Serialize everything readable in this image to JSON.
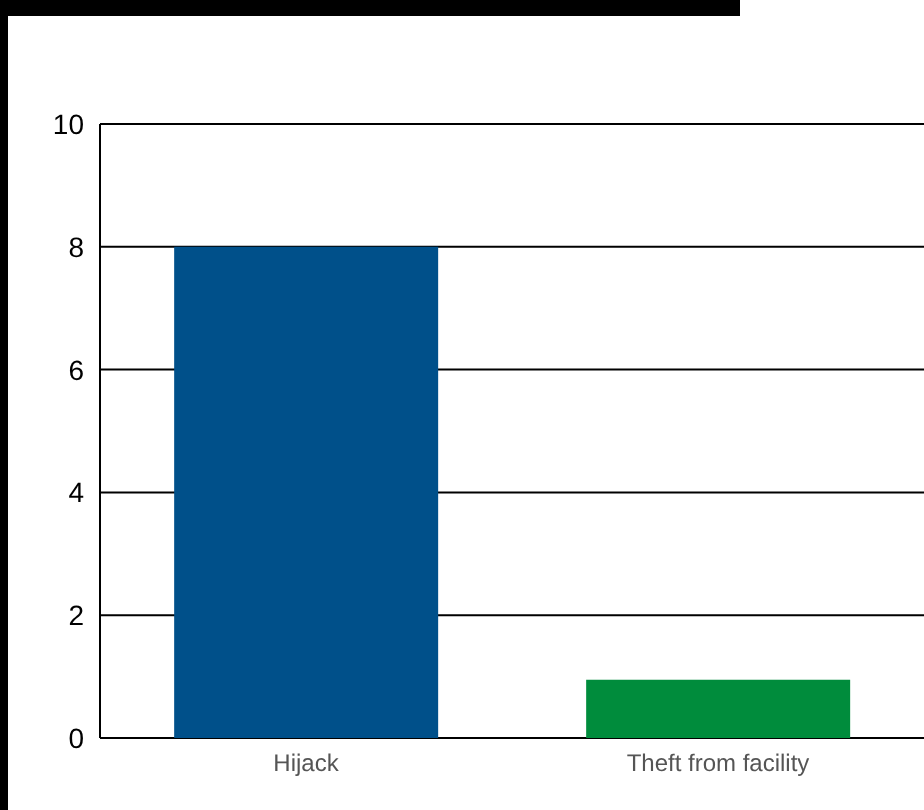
{
  "chart_data": {
    "type": "bar",
    "categories": [
      "Hijack",
      "Theft from facility"
    ],
    "values": [
      8,
      0.95
    ],
    "colors": [
      "#00508a",
      "#008c3c"
    ],
    "ylim": [
      0,
      10
    ],
    "yticks": [
      0,
      2,
      4,
      6,
      8,
      10
    ],
    "grid": "y"
  }
}
